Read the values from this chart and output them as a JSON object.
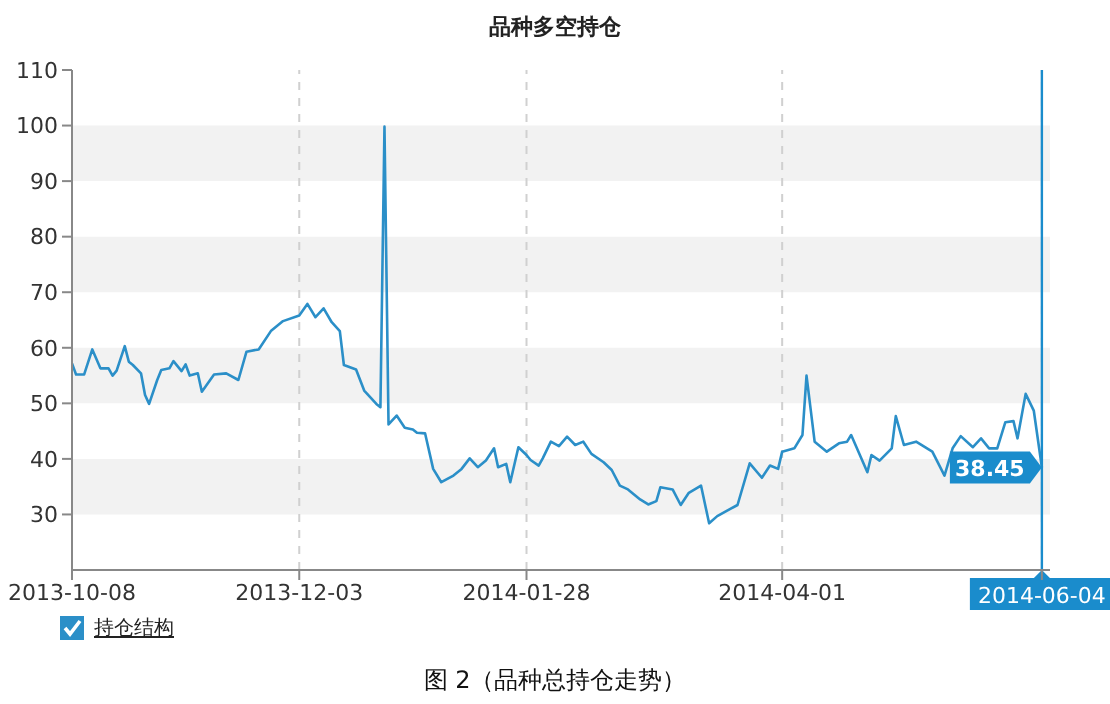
{
  "chart_data": {
    "type": "line",
    "title": "品种多空持仓",
    "x": [
      "2013-10-08",
      "2013-10-09",
      "2013-10-11",
      "2013-10-13",
      "2013-10-15",
      "2013-10-17",
      "2013-10-18",
      "2013-10-19",
      "2013-10-21",
      "2013-10-22",
      "2013-10-23",
      "2013-10-25",
      "2013-10-26",
      "2013-10-27",
      "2013-10-29",
      "2013-10-30",
      "2013-11-01",
      "2013-11-02",
      "2013-11-04",
      "2013-11-05",
      "2013-11-06",
      "2013-11-08",
      "2013-11-09",
      "2013-11-12",
      "2013-11-15",
      "2013-11-18",
      "2013-11-20",
      "2013-11-23",
      "2013-11-26",
      "2013-11-29",
      "2013-12-03",
      "2013-12-05",
      "2013-12-07",
      "2013-12-09",
      "2013-12-11",
      "2013-12-13",
      "2013-12-14",
      "2013-12-17",
      "2013-12-19",
      "2013-12-22",
      "2013-12-23",
      "2013-12-24",
      "2013-12-25",
      "2013-12-27",
      "2013-12-29",
      "2013-12-31",
      "2014-01-01",
      "2014-01-03",
      "2014-01-05",
      "2014-01-07",
      "2014-01-10",
      "2014-01-12",
      "2014-01-14",
      "2014-01-16",
      "2014-01-18",
      "2014-01-20",
      "2014-01-21",
      "2014-01-23",
      "2014-01-24",
      "2014-01-26",
      "2014-01-28",
      "2014-01-29",
      "2014-01-31",
      "2014-02-01",
      "2014-02-03",
      "2014-02-05",
      "2014-02-07",
      "2014-02-09",
      "2014-02-11",
      "2014-02-13",
      "2014-02-16",
      "2014-02-18",
      "2014-02-20",
      "2014-02-22",
      "2014-02-25",
      "2014-02-27",
      "2014-03-01",
      "2014-03-02",
      "2014-03-05",
      "2014-03-07",
      "2014-03-09",
      "2014-03-12",
      "2014-03-14",
      "2014-03-16",
      "2014-03-19",
      "2014-03-21",
      "2014-03-24",
      "2014-03-27",
      "2014-03-29",
      "2014-03-31",
      "2014-04-01",
      "2014-04-04",
      "2014-04-06",
      "2014-04-07",
      "2014-04-09",
      "2014-04-12",
      "2014-04-15",
      "2014-04-17",
      "2014-04-18",
      "2014-04-22",
      "2014-04-23",
      "2014-04-25",
      "2014-04-28",
      "2014-04-29",
      "2014-05-01",
      "2014-05-04",
      "2014-05-08",
      "2014-05-11",
      "2014-05-13",
      "2014-05-15",
      "2014-05-18",
      "2014-05-20",
      "2014-05-22",
      "2014-05-24",
      "2014-05-26",
      "2014-05-28",
      "2014-05-29",
      "2014-05-31",
      "2014-06-02",
      "2014-06-04"
    ],
    "series": [
      {
        "name": "持仓结构",
        "color": "#2b8fc8",
        "values": [
          57.2,
          55.2,
          55.2,
          59.7,
          56.3,
          56.3,
          55,
          55.9,
          60.3,
          57.5,
          56.9,
          55.4,
          51.5,
          49.9,
          54.2,
          56,
          56.3,
          57.6,
          55.8,
          57,
          55,
          55.4,
          52.1,
          55.2,
          55.4,
          54.2,
          59.3,
          59.7,
          63,
          64.8,
          65.8,
          67.9,
          65.5,
          67.1,
          64.6,
          63,
          56.9,
          56.1,
          52.3,
          49.9,
          49.3,
          99.8,
          46.2,
          47.8,
          45.6,
          45.3,
          44.7,
          44.6,
          38.2,
          35.8,
          37,
          38.2,
          40.1,
          38.5,
          39.7,
          41.9,
          38.5,
          39.1,
          35.8,
          42.1,
          40.7,
          39.8,
          38.8,
          40.1,
          43.1,
          42.3,
          44,
          42.5,
          43.1,
          40.9,
          39.4,
          38,
          35.2,
          34.5,
          32.7,
          31.8,
          32.4,
          34.9,
          34.5,
          31.7,
          33.9,
          35.2,
          28.4,
          29.7,
          30.9,
          31.7,
          39.2,
          36.6,
          38.8,
          38.2,
          41.3,
          41.9,
          44.3,
          55,
          43.1,
          41.3,
          42.8,
          43.1,
          44.3,
          37.6,
          40.7,
          39.7,
          41.9,
          47.7,
          42.5,
          43.1,
          41.3,
          37,
          41.9,
          44.1,
          42.1,
          43.7,
          41.9,
          41.9,
          46.6,
          46.8,
          43.7,
          51.7,
          48.7,
          38.45
        ]
      }
    ],
    "xlim": [
      "2013-10-08",
      "2014-06-06"
    ],
    "xticks": [
      {
        "value": "2013-10-08",
        "label": "2013-10-08"
      },
      {
        "value": "2013-12-03",
        "label": "2013-12-03"
      },
      {
        "value": "2014-01-28",
        "label": "2014-01-28"
      },
      {
        "value": "2014-04-01",
        "label": "2014-04-01"
      },
      {
        "value": "2014-06-04",
        "label": null
      }
    ],
    "ylim": [
      20,
      110
    ],
    "yticks": [
      30,
      40,
      50,
      60,
      70,
      80,
      90,
      100,
      110
    ],
    "grid": true,
    "legend": "bottom left",
    "marker": "none",
    "line_style": "solid",
    "ref_lines": [
      {
        "axis": "x",
        "value": "2014-06-04",
        "label": "2014-06-04",
        "color": "#1a8ccc"
      }
    ],
    "annotations": [
      {
        "text": "38.45",
        "x": "2014-06-04",
        "y": 38.45
      },
      "图 2（品种总持仓走势）"
    ]
  }
}
